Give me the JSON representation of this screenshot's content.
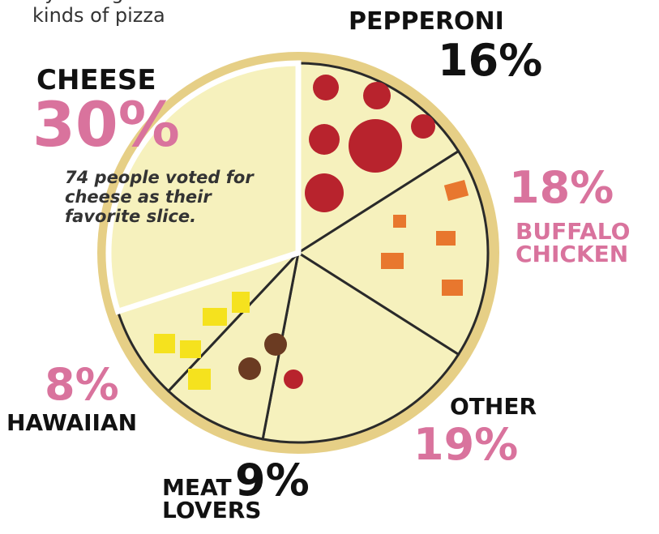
{
  "chart_data": {
    "type": "pie",
    "subtitle": "by voting for their favorite kinds of pizza",
    "annotation": "74 people voted for cheese as their favorite slice.",
    "categories": [
      "PEPPERONI",
      "BUFFALO CHICKEN",
      "OTHER",
      "MEAT LOVERS",
      "HAWAIIAN",
      "CHEESE"
    ],
    "values": [
      16,
      18,
      19,
      9,
      8,
      30
    ],
    "value_labels": [
      "16%",
      "18%",
      "19%",
      "9%",
      "8%",
      "30%"
    ],
    "color": "#f6f1bd",
    "value_label_colors": [
      "#111111",
      "#d9739d",
      "#d9739d",
      "#111111",
      "#d9739d",
      "#d9739d"
    ]
  }
}
